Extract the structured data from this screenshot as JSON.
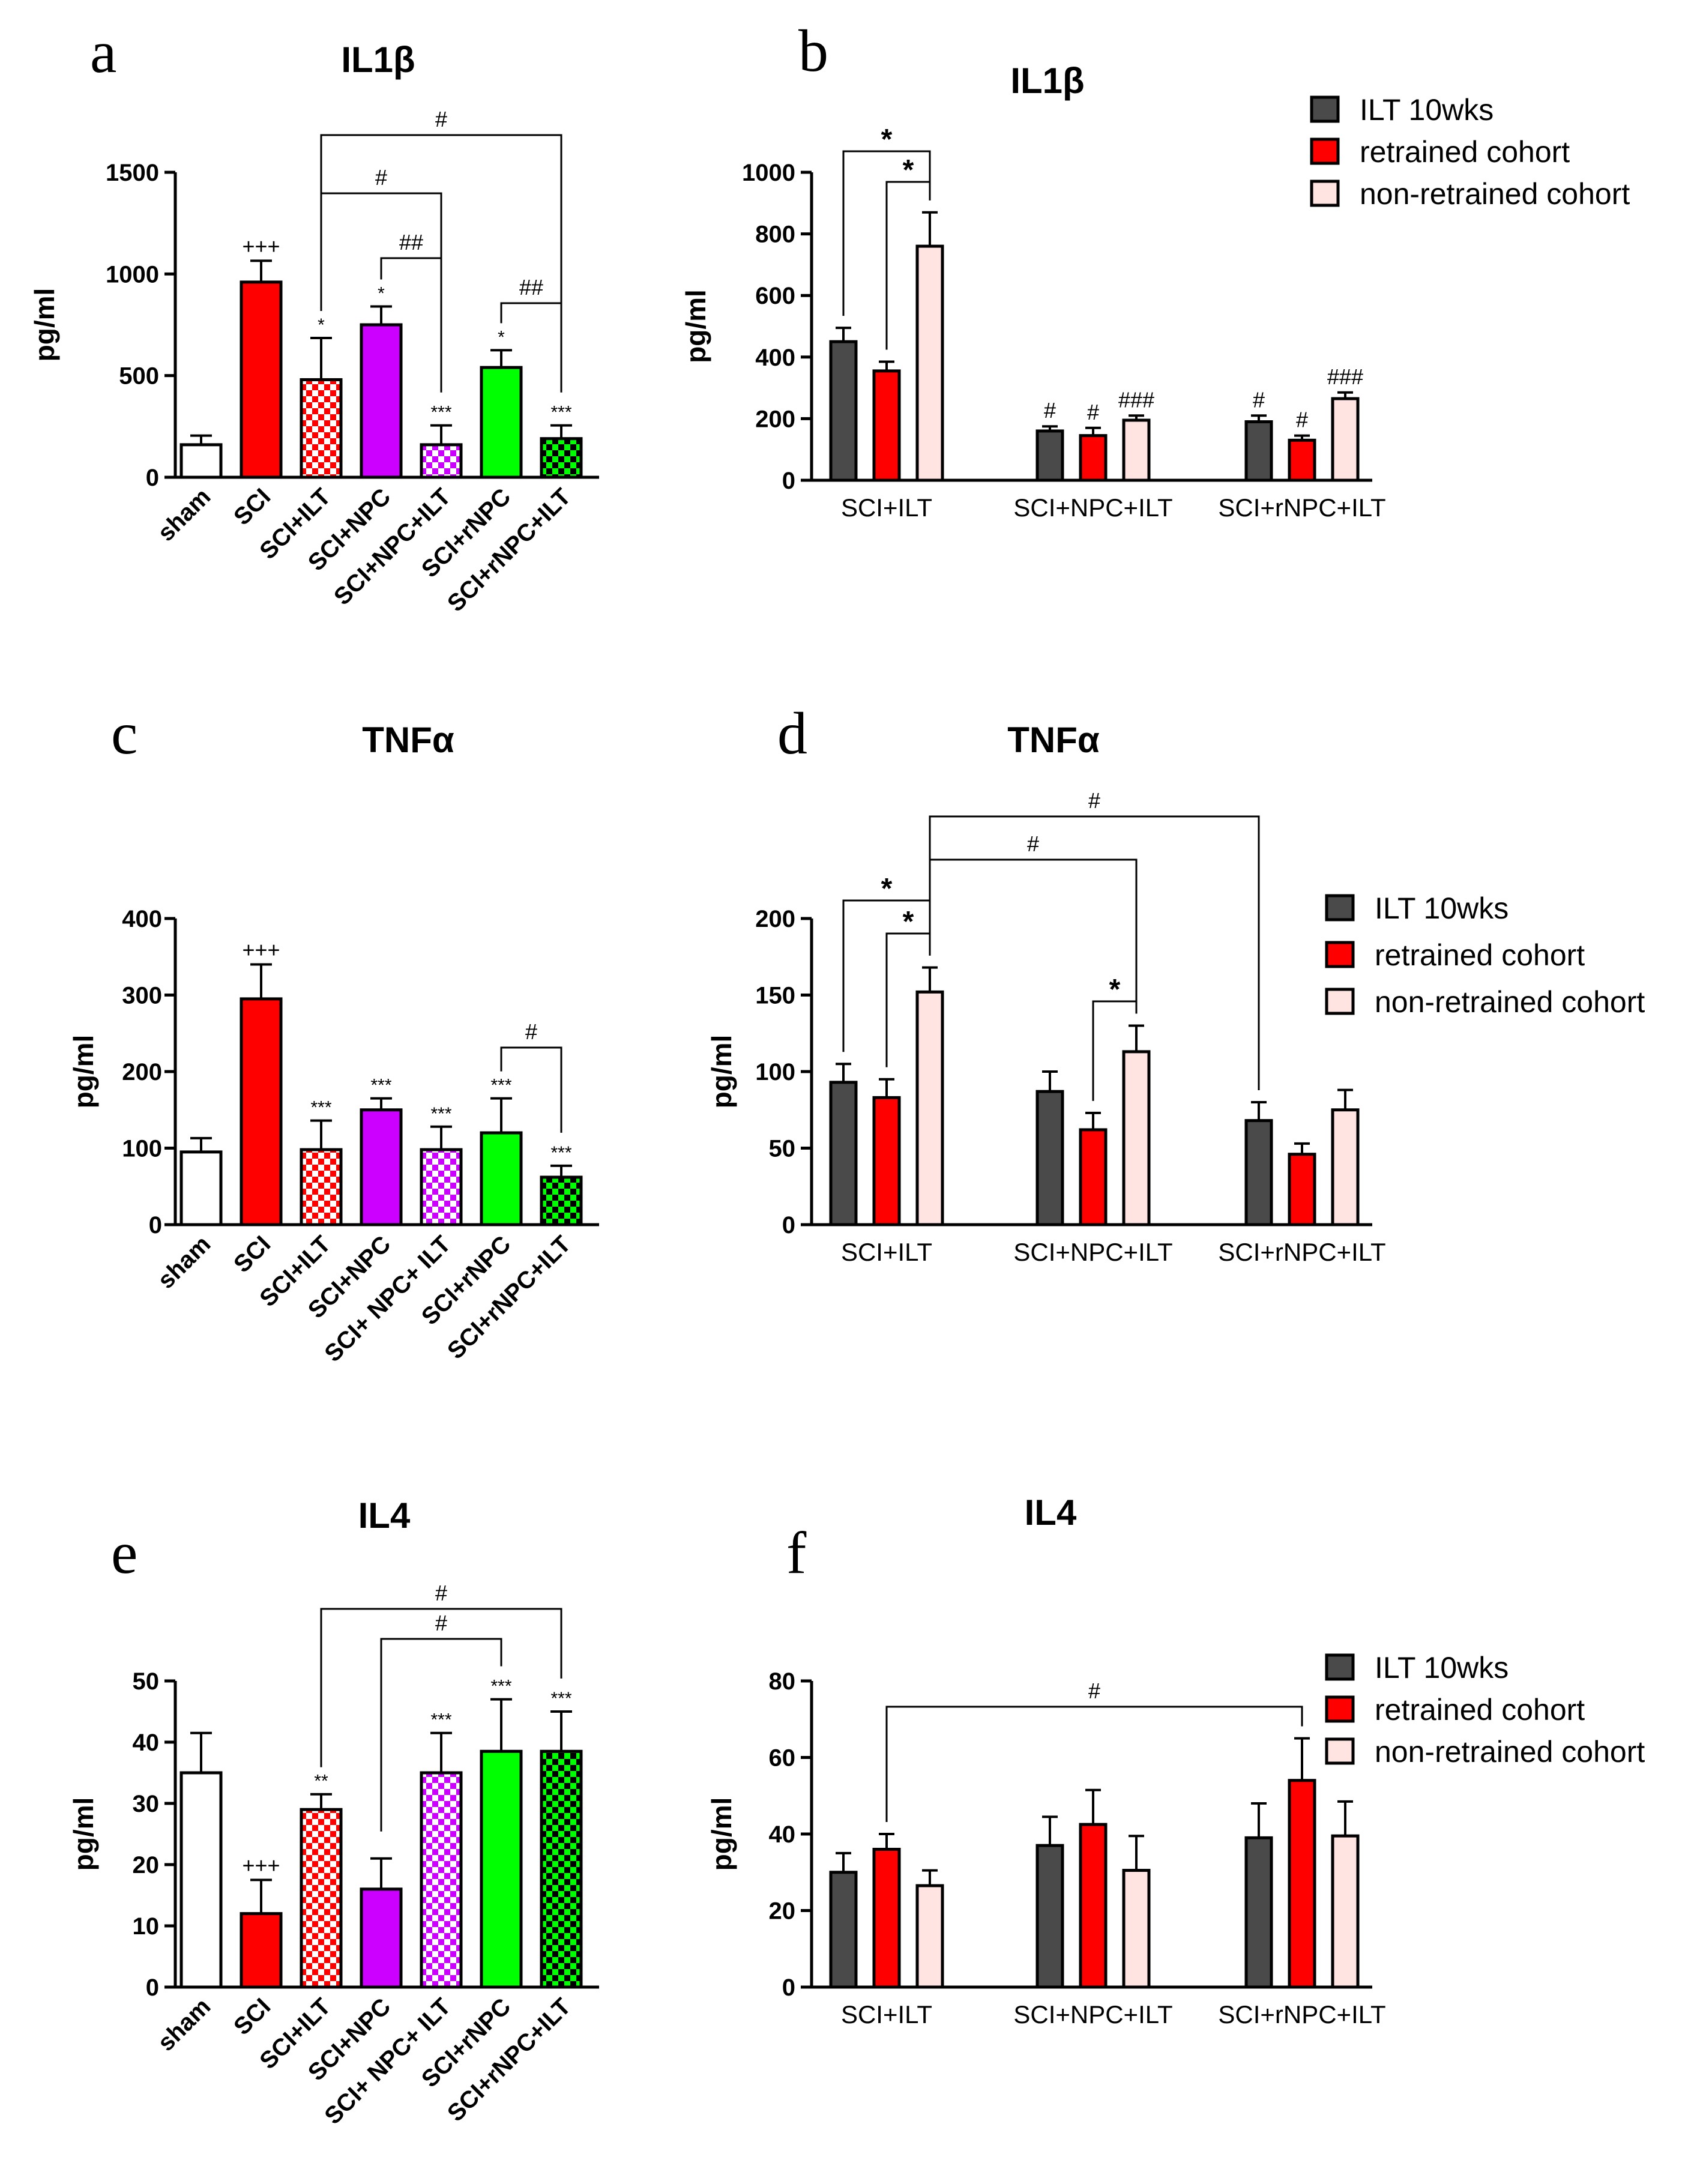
{
  "colors": {
    "ilt10": "#4a4a4a",
    "retrained": "#ff0000",
    "nonretrained": "#ffe4e1",
    "sham": "#ffffff",
    "sci": "#ff0000",
    "npc": "#cc00ff",
    "rnpc": "#00ff00"
  },
  "chart_data": [
    {
      "id": "a",
      "panel_label": "a",
      "type": "bar",
      "title": "IL1β",
      "ylabel": "pg/ml",
      "ylim": [
        0,
        1500
      ],
      "yticks": [
        0,
        500,
        1000,
        1500
      ],
      "categories": [
        "sham",
        "SCI",
        "SCI+ILT",
        "SCI+NPC",
        "SCI+NPC+ILT",
        "SCI+rNPC",
        "SCI+rNPC+ILT"
      ],
      "values": [
        160,
        960,
        480,
        750,
        160,
        540,
        190
      ],
      "errors": [
        45,
        105,
        205,
        90,
        95,
        85,
        65
      ],
      "fills": [
        "sham",
        "sci",
        "sci-check",
        "npc",
        "npc-check",
        "rnpc",
        "rnpc-check"
      ],
      "annotations": [
        "",
        "+++",
        "*",
        "*",
        "***",
        "*",
        "***"
      ],
      "brackets": [
        {
          "from": 2,
          "to": 6,
          "label": "#"
        },
        {
          "from": 2,
          "to": 4,
          "label": "#"
        },
        {
          "from": 3,
          "to": 4,
          "label": "##"
        },
        {
          "from": 5,
          "to": 6,
          "label": "##"
        }
      ]
    },
    {
      "id": "b",
      "panel_label": "b",
      "type": "bar",
      "title": "IL1β",
      "ylabel": "pg/ml",
      "ylim": [
        0,
        1000
      ],
      "yticks": [
        0,
        200,
        400,
        600,
        800,
        1000
      ],
      "categories": [
        "SCI+ILT",
        "SCI+NPC+ILT",
        "SCI+rNPC+ILT"
      ],
      "series": [
        {
          "name": "ILT 10wks",
          "values": [
            450,
            160,
            190
          ],
          "errors": [
            45,
            15,
            20
          ],
          "annotations": [
            "",
            "#",
            "#"
          ]
        },
        {
          "name": "retrained cohort",
          "values": [
            355,
            145,
            130
          ],
          "errors": [
            30,
            25,
            15
          ],
          "annotations": [
            "",
            "#",
            "#"
          ]
        },
        {
          "name": "non-retrained cohort",
          "values": [
            760,
            195,
            265
          ],
          "errors": [
            110,
            15,
            20
          ],
          "annotations": [
            "",
            "###",
            "###"
          ]
        }
      ],
      "brackets": [
        {
          "from": [
            0,
            0
          ],
          "to": [
            0,
            2
          ],
          "label": "*"
        },
        {
          "from": [
            0,
            1
          ],
          "to": [
            0,
            2
          ],
          "label": "*"
        }
      ],
      "legend_position": "top-right"
    },
    {
      "id": "c",
      "panel_label": "c",
      "type": "bar",
      "title": "TNFα",
      "ylabel": "pg/ml",
      "ylim": [
        0,
        400
      ],
      "yticks": [
        0,
        100,
        200,
        300,
        400
      ],
      "categories": [
        "sham",
        "SCI",
        "SCI+ILT",
        "SCI+NPC",
        "SCI+ NPC+ ILT",
        "SCI+rNPC",
        "SCI+rNPC+ILT"
      ],
      "values": [
        95,
        295,
        98,
        150,
        98,
        120,
        62
      ],
      "errors": [
        18,
        45,
        38,
        15,
        30,
        45,
        15
      ],
      "fills": [
        "sham",
        "sci",
        "sci-check",
        "npc",
        "npc-check",
        "rnpc",
        "rnpc-check"
      ],
      "annotations": [
        "",
        "+++",
        "***",
        "***",
        "***",
        "***",
        "***"
      ],
      "brackets": [
        {
          "from": 5,
          "to": 6,
          "label": "#"
        }
      ]
    },
    {
      "id": "d",
      "panel_label": "d",
      "type": "bar",
      "title": "TNFα",
      "ylabel": "pg/ml",
      "ylim": [
        0,
        200
      ],
      "yticks": [
        0,
        50,
        100,
        150,
        200
      ],
      "categories": [
        "SCI+ILT",
        "SCI+NPC+ILT",
        "SCI+rNPC+ILT"
      ],
      "series": [
        {
          "name": "ILT 10wks",
          "values": [
            93,
            87,
            68
          ],
          "errors": [
            12,
            13,
            12
          ],
          "annotations": [
            "",
            "",
            ""
          ]
        },
        {
          "name": "retrained cohort",
          "values": [
            83,
            62,
            46
          ],
          "errors": [
            12,
            11,
            7
          ],
          "annotations": [
            "",
            "",
            ""
          ]
        },
        {
          "name": "non-retrained cohort",
          "values": [
            152,
            113,
            75
          ],
          "errors": [
            16,
            17,
            13
          ],
          "annotations": [
            "",
            "",
            ""
          ]
        }
      ],
      "brackets": [
        {
          "from": [
            0,
            2
          ],
          "to": [
            2,
            0
          ],
          "label": "#"
        },
        {
          "from": [
            0,
            2
          ],
          "to": [
            1,
            2
          ],
          "label": "#"
        },
        {
          "from": [
            0,
            0
          ],
          "to": [
            0,
            2
          ],
          "label": "*"
        },
        {
          "from": [
            0,
            1
          ],
          "to": [
            0,
            2
          ],
          "label": "*"
        },
        {
          "from": [
            1,
            1
          ],
          "to": [
            1,
            2
          ],
          "label": "*"
        }
      ],
      "legend_position": "right"
    },
    {
      "id": "e",
      "panel_label": "e",
      "type": "bar",
      "title": "IL4",
      "ylabel": "pg/ml",
      "ylim": [
        0,
        50
      ],
      "yticks": [
        0,
        10,
        20,
        30,
        40,
        50
      ],
      "categories": [
        "sham",
        "SCI",
        "SCI+ILT",
        "SCI+NPC",
        "SCI+ NPC+ ILT",
        "SCI+rNPC",
        "SCI+rNPC+ILT"
      ],
      "values": [
        35,
        12,
        29,
        16,
        35,
        38.5,
        38.5
      ],
      "errors": [
        6.5,
        5.5,
        2.5,
        5,
        6.5,
        8.5,
        6.5
      ],
      "fills": [
        "sham",
        "sci",
        "sci-check",
        "npc",
        "npc-check",
        "rnpc",
        "rnpc-check"
      ],
      "annotations": [
        "",
        "+++",
        "**",
        "",
        "***",
        "***",
        "***"
      ],
      "brackets": [
        {
          "from": 2,
          "to": 6,
          "label": "#"
        },
        {
          "from": 3,
          "to": 5,
          "label": "#"
        }
      ]
    },
    {
      "id": "f",
      "panel_label": "f",
      "type": "bar",
      "title": "IL4",
      "ylabel": "pg/ml",
      "ylim": [
        0,
        80
      ],
      "yticks": [
        0,
        20,
        40,
        60,
        80
      ],
      "categories": [
        "SCI+ILT",
        "SCI+NPC+ILT",
        "SCI+rNPC+ILT"
      ],
      "series": [
        {
          "name": "ILT 10wks",
          "values": [
            30,
            37,
            39
          ],
          "errors": [
            5,
            7.5,
            9
          ],
          "annotations": [
            "",
            "",
            ""
          ]
        },
        {
          "name": "retrained cohort",
          "values": [
            36,
            42.5,
            54
          ],
          "errors": [
            4,
            9,
            11
          ],
          "annotations": [
            "",
            "",
            ""
          ]
        },
        {
          "name": "non-retrained cohort",
          "values": [
            26.5,
            30.5,
            39.5
          ],
          "errors": [
            4,
            9,
            9
          ],
          "annotations": [
            "",
            "",
            ""
          ]
        }
      ],
      "brackets": [
        {
          "from": [
            0,
            1
          ],
          "to": [
            2,
            1
          ],
          "label": "#"
        }
      ],
      "legend_position": "right"
    }
  ]
}
